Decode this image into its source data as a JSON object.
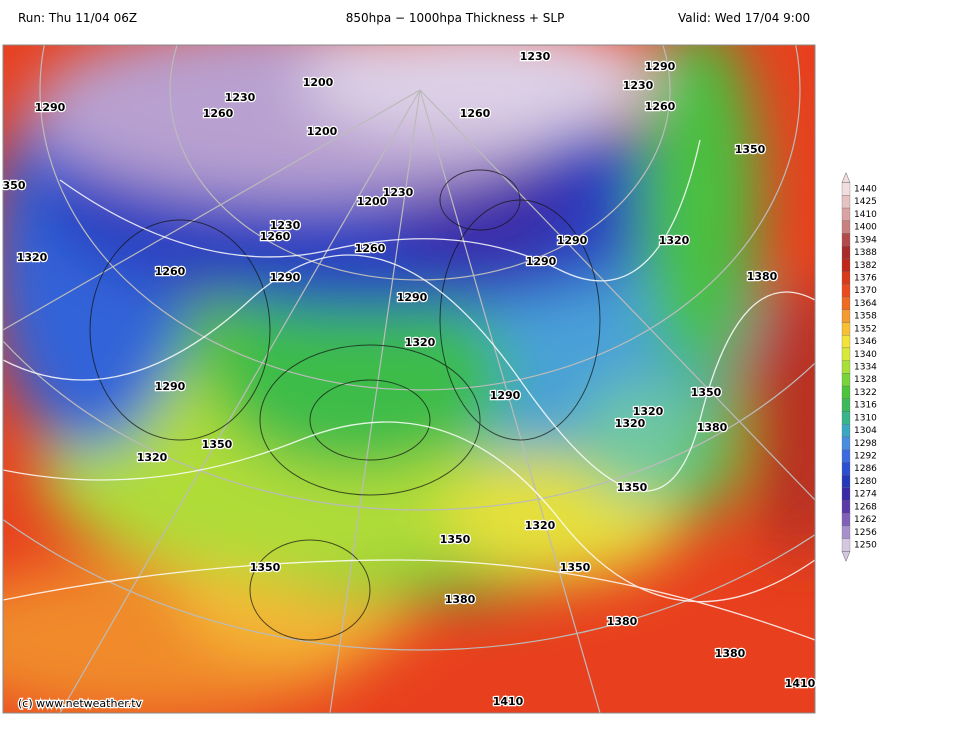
{
  "header": {
    "run": "Run: Thu 11/04 06Z",
    "title": "850hpa − 1000hpa Thickness + SLP",
    "valid": "Valid: Wed 17/04 9:00"
  },
  "footer": "(c) www.netweather.tv",
  "legend": {
    "labels": [
      1440,
      1425,
      1410,
      1400,
      1394,
      1388,
      1382,
      1376,
      1370,
      1364,
      1358,
      1352,
      1346,
      1340,
      1334,
      1328,
      1322,
      1316,
      1310,
      1304,
      1298,
      1292,
      1286,
      1280,
      1274,
      1268,
      1262,
      1256,
      1250
    ],
    "colors": [
      "#f2dede",
      "#e6c2c2",
      "#d9a3a3",
      "#c98080",
      "#b34a4a",
      "#a82a2a",
      "#c0281c",
      "#d83a1c",
      "#ea4b1e",
      "#f06a22",
      "#f49a2e",
      "#f6c032",
      "#f2e23a",
      "#d6ea3a",
      "#a8e03a",
      "#78d43a",
      "#4cc43c",
      "#3aba5a",
      "#36b48c",
      "#3aa8c0",
      "#4a8ce0",
      "#3c6ae0",
      "#2c4ed0",
      "#2438b8",
      "#3a2aa8",
      "#5a3aa8",
      "#8060b8",
      "#a890cc",
      "#d4c8e0"
    ]
  },
  "map": {
    "contour_labels": [
      "1230",
      "1290",
      "1200",
      "1230",
      "1230",
      "1290",
      "1260",
      "1260",
      "1260",
      "1200",
      "1350",
      "350",
      "1230",
      "1200",
      "1230",
      "1260",
      "1290",
      "1320",
      "1260",
      "1320",
      "1290",
      "1260",
      "1380",
      "1290",
      "1290",
      "1320",
      "1290",
      "1350",
      "1290",
      "1320",
      "1320",
      "1380",
      "1350",
      "1320",
      "1350",
      "1320",
      "1350",
      "1350",
      "1350",
      "1380",
      "1380",
      "1380",
      "1410",
      "1410"
    ]
  }
}
